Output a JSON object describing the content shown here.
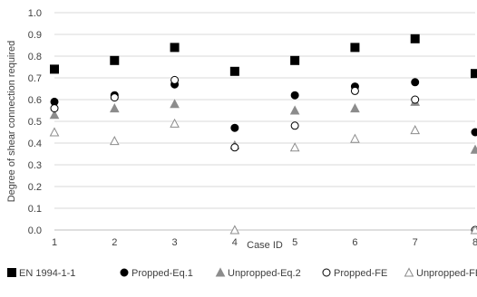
{
  "chart_data": {
    "type": "scatter",
    "title": "",
    "xlabel": "Case ID",
    "ylabel": "Degree of shear connection required",
    "x": [
      1,
      2,
      3,
      4,
      5,
      6,
      7,
      8
    ],
    "x_tick_labels": [
      "1",
      "2",
      "3",
      "4",
      "5",
      "6",
      "7",
      "8"
    ],
    "y_tick_labels": [
      "0.0",
      "0.1",
      "0.2",
      "0.3",
      "0.4",
      "0.5",
      "0.6",
      "0.7",
      "0.8",
      "0.9",
      "1.0"
    ],
    "xlim": [
      1,
      8
    ],
    "ylim": [
      0,
      1
    ],
    "grid": "horizontal",
    "legend_position": "bottom",
    "series": [
      {
        "name": "EN 1994-1-1",
        "marker": "square",
        "color": "#000000",
        "filled": true,
        "values": [
          0.74,
          0.78,
          0.84,
          0.73,
          0.78,
          0.84,
          0.88,
          0.72
        ]
      },
      {
        "name": "Propped-Eq.1",
        "marker": "circle",
        "color": "#000000",
        "filled": true,
        "values": [
          0.59,
          0.62,
          0.67,
          0.47,
          0.62,
          0.66,
          0.68,
          0.45
        ]
      },
      {
        "name": "Unpropped-Eq.2",
        "marker": "triangle",
        "color": "#8c8c8c",
        "filled": true,
        "values": [
          0.53,
          0.56,
          0.58,
          0.39,
          0.55,
          0.56,
          0.59,
          0.37
        ]
      },
      {
        "name": "Propped-FE",
        "marker": "circle",
        "color": "#000000",
        "filled": false,
        "values": [
          0.56,
          0.61,
          0.69,
          0.38,
          0.48,
          0.64,
          0.6,
          0.0
        ]
      },
      {
        "name": "Unpropped-FE",
        "marker": "triangle",
        "color": "#8c8c8c",
        "filled": false,
        "values": [
          0.45,
          0.41,
          0.49,
          0.0,
          0.38,
          0.42,
          0.46,
          0.0
        ]
      }
    ]
  }
}
